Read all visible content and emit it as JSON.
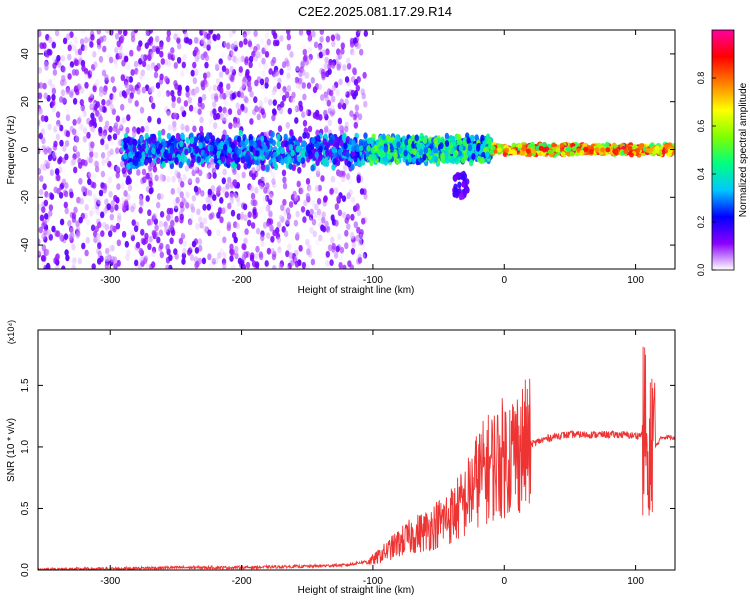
{
  "title": "C2E2.2025.081.17.29.R14",
  "chart_data": [
    {
      "type": "heatmap",
      "xlabel": "Height of straight line (km)",
      "ylabel": "Frequency (Hz)",
      "xlim": [
        -355,
        130
      ],
      "ylim": [
        -50,
        50
      ],
      "xticks": [
        -300,
        -200,
        -100,
        0,
        100
      ],
      "yticks": [
        -40,
        -20,
        0,
        20,
        40
      ],
      "colorbar": {
        "label": "Normalized spectral amplitude",
        "range": [
          0,
          1
        ],
        "ticks": [
          "0.0",
          "0.2",
          "0.4",
          "0.6",
          "0.8"
        ],
        "tick_values": [
          0.0,
          0.2,
          0.4,
          0.6,
          0.8
        ],
        "colormap": [
          "#ffffff",
          "#8a00ff",
          "#0000ff",
          "#00c8ff",
          "#00ff80",
          "#80ff00",
          "#ffff00",
          "#ff8000",
          "#ff0000",
          "#ff00a0"
        ]
      },
      "regions": [
        {
          "x": [
            -355,
            -105
          ],
          "y": [
            -50,
            50
          ],
          "amplitude": [
            0.0,
            0.15
          ],
          "pattern": "scattered noise"
        },
        {
          "x": [
            -290,
            -105
          ],
          "y": [
            -8,
            7
          ],
          "amplitude": [
            0.1,
            0.4
          ],
          "pattern": "band near zero"
        },
        {
          "x": [
            -105,
            -10
          ],
          "y": [
            -6,
            6
          ],
          "amplitude": [
            0.2,
            0.55
          ],
          "pattern": "band"
        },
        {
          "x": [
            -10,
            130
          ],
          "y": [
            -2.5,
            2.5
          ],
          "amplitude": [
            0.45,
            0.95
          ],
          "pattern": "narrow line"
        },
        {
          "x": [
            -38,
            -28
          ],
          "y": [
            -20,
            -10
          ],
          "amplitude": [
            0.1,
            0.2
          ],
          "pattern": "streak"
        }
      ]
    },
    {
      "type": "line",
      "xlabel": "Height of straight line (km)",
      "ylabel": "SNR (10 * v/v)",
      "y_multiplier": "(x10⁴)",
      "xlim": [
        -355,
        130
      ],
      "ylim": [
        0,
        1.95
      ],
      "xticks": [
        -300,
        -200,
        -100,
        0,
        100
      ],
      "yticks": [
        "0.0",
        "0.5",
        "1.0",
        "1.5"
      ],
      "ytick_values": [
        0.0,
        0.5,
        1.0,
        1.5
      ],
      "color": "#ee3333",
      "series": [
        {
          "x": [
            -355,
            -300,
            -250,
            -200,
            -150,
            -120,
            -100,
            -90,
            -80,
            -70,
            -60,
            -50,
            -40,
            -30,
            -20,
            -10,
            0,
            10,
            20,
            30,
            40,
            50,
            60,
            70,
            80,
            90,
            100,
            105,
            108,
            110,
            112,
            115,
            120,
            130
          ],
          "y": [
            0.005,
            0.01,
            0.02,
            0.02,
            0.03,
            0.04,
            0.08,
            0.15,
            0.22,
            0.28,
            0.32,
            0.38,
            0.45,
            0.55,
            0.75,
            0.85,
            0.92,
            0.98,
            1.02,
            1.06,
            1.09,
            1.1,
            1.1,
            1.1,
            1.1,
            1.1,
            1.09,
            1.1,
            1.2,
            0.4,
            1.2,
            1.0,
            1.08,
            1.08
          ]
        }
      ]
    }
  ]
}
